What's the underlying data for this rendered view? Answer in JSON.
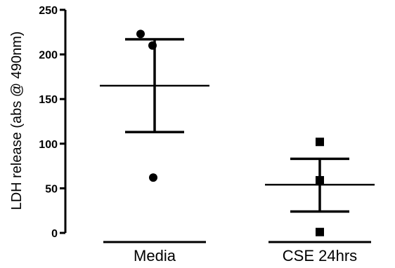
{
  "chart_data": {
    "type": "scatter",
    "ylabel": "LDH release (abs @ 490nm)",
    "ylim": [
      0,
      250
    ],
    "yticks": [
      0,
      50,
      100,
      150,
      200,
      250
    ],
    "categories": [
      "Media",
      "CSE 24hrs"
    ],
    "groups": [
      {
        "category": "Media",
        "marker": "circle",
        "points": [
          223,
          210,
          62
        ],
        "mean": 165,
        "error_upper": 217,
        "error_lower": 113
      },
      {
        "category": "CSE 24hrs",
        "marker": "square",
        "points": [
          102,
          59,
          1
        ],
        "mean": 54,
        "error_upper": 83,
        "error_lower": 24
      }
    ],
    "colors": {
      "marks": "#000000"
    }
  }
}
